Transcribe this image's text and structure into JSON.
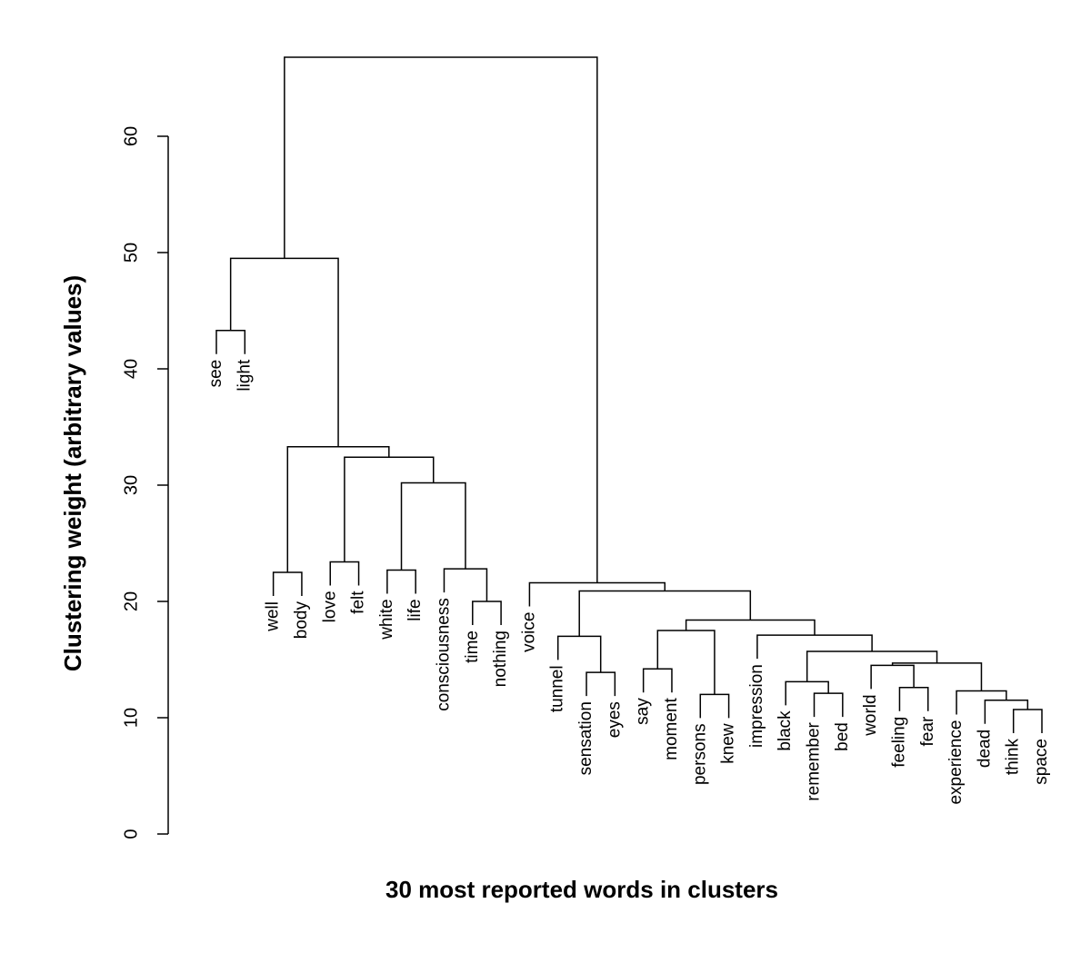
{
  "chart_data": {
    "type": "dendrogram",
    "x_label": "30 most reported words in clusters",
    "y_label": "Clustering weight (arbitrary values)",
    "ylim": [
      0,
      60
    ],
    "yticks": [
      0,
      10,
      20,
      30,
      40,
      50,
      60
    ],
    "color": "#000000",
    "tree": {
      "height": 66.8,
      "children": [
        {
          "height": 49.5,
          "children": [
            {
              "height": 43.3,
              "children": [
                {
                  "label": "see"
                },
                {
                  "label": "light"
                }
              ]
            },
            {
              "height": 33.3,
              "children": [
                {
                  "height": 22.5,
                  "children": [
                    {
                      "label": "well"
                    },
                    {
                      "label": "body"
                    }
                  ]
                },
                {
                  "height": 32.4,
                  "children": [
                    {
                      "height": 23.4,
                      "children": [
                        {
                          "label": "love"
                        },
                        {
                          "label": "felt"
                        }
                      ]
                    },
                    {
                      "height": 30.2,
                      "children": [
                        {
                          "height": 22.7,
                          "children": [
                            {
                              "label": "white"
                            },
                            {
                              "label": "life"
                            }
                          ]
                        },
                        {
                          "height": 22.8,
                          "children": [
                            {
                              "label": "consciousness"
                            },
                            {
                              "height": 20.0,
                              "children": [
                                {
                                  "label": "time"
                                },
                                {
                                  "label": "nothing"
                                }
                              ]
                            }
                          ]
                        }
                      ]
                    }
                  ]
                }
              ]
            }
          ]
        },
        {
          "height": 21.6,
          "children": [
            {
              "label": "voice"
            },
            {
              "height": 20.9,
              "children": [
                {
                  "height": 17.0,
                  "children": [
                    {
                      "label": "tunnel"
                    },
                    {
                      "height": 13.9,
                      "children": [
                        {
                          "label": "sensation"
                        },
                        {
                          "label": "eyes"
                        }
                      ]
                    }
                  ]
                },
                {
                  "height": 18.4,
                  "children": [
                    {
                      "height": 17.5,
                      "children": [
                        {
                          "height": 14.2,
                          "children": [
                            {
                              "label": "say"
                            },
                            {
                              "label": "moment"
                            }
                          ]
                        },
                        {
                          "height": 12.0,
                          "children": [
                            {
                              "label": "persons"
                            },
                            {
                              "label": "knew"
                            }
                          ]
                        }
                      ]
                    },
                    {
                      "height": 17.1,
                      "children": [
                        {
                          "label": "impression"
                        },
                        {
                          "height": 15.7,
                          "children": [
                            {
                              "height": 13.1,
                              "children": [
                                {
                                  "label": "black"
                                },
                                {
                                  "height": 12.1,
                                  "children": [
                                    {
                                      "label": "remember"
                                    },
                                    {
                                      "label": "bed"
                                    }
                                  ]
                                }
                              ]
                            },
                            {
                              "height": 14.7,
                              "children": [
                                {
                                  "height": 14.5,
                                  "children": [
                                    {
                                      "label": "world"
                                    },
                                    {
                                      "height": 12.6,
                                      "children": [
                                        {
                                          "label": "feeling"
                                        },
                                        {
                                          "label": "fear"
                                        }
                                      ]
                                    }
                                  ]
                                },
                                {
                                  "height": 12.3,
                                  "children": [
                                    {
                                      "label": "experience"
                                    },
                                    {
                                      "height": 11.5,
                                      "children": [
                                        {
                                          "label": "dead"
                                        },
                                        {
                                          "height": 10.7,
                                          "children": [
                                            {
                                              "label": "think"
                                            },
                                            {
                                              "label": "space"
                                            }
                                          ]
                                        }
                                      ]
                                    }
                                  ]
                                }
                              ]
                            }
                          ]
                        }
                      ]
                    }
                  ]
                }
              ]
            }
          ]
        }
      ]
    }
  }
}
